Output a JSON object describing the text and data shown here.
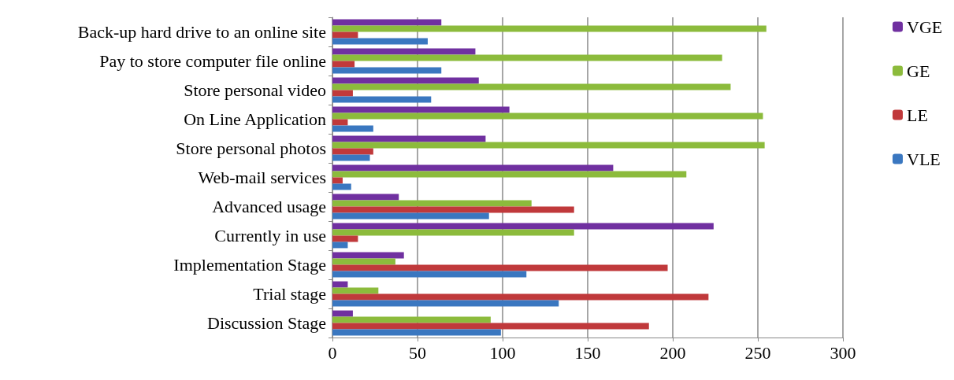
{
  "chart_data": {
    "type": "bar",
    "orientation": "horizontal",
    "categories": [
      "Back-up hard drive to an online site",
      "Pay to store computer file online",
      "Store personal video",
      "On Line Application",
      "Store personal photos",
      "Web-mail services",
      "Advanced usage",
      "Currently in use",
      "Implementation Stage",
      "Trial stage",
      "Discussion Stage"
    ],
    "series": [
      {
        "name": "VGE",
        "color": "#7030a0",
        "values": [
          64,
          84,
          86,
          104,
          90,
          165,
          39,
          224,
          42,
          9,
          12
        ]
      },
      {
        "name": "GE",
        "color": "#8cbb3c",
        "values": [
          255,
          229,
          234,
          253,
          254,
          208,
          117,
          142,
          37,
          27,
          93
        ]
      },
      {
        "name": "LE",
        "color": "#c0393b",
        "values": [
          15,
          13,
          12,
          9,
          24,
          6,
          142,
          15,
          197,
          221,
          186
        ]
      },
      {
        "name": "VLE",
        "color": "#3a77c0",
        "values": [
          56,
          64,
          58,
          24,
          22,
          11,
          92,
          9,
          114,
          133,
          99
        ]
      }
    ],
    "xlim": [
      0,
      300
    ],
    "xticks": [
      0,
      50,
      100,
      150,
      200,
      250,
      300
    ],
    "grid": "x",
    "legend": "right"
  }
}
